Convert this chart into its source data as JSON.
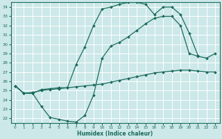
{
  "xlabel": "Humidex (Indice chaleur)",
  "bg_color": "#cce8e8",
  "line_color": "#1a6b5a",
  "grid_color": "#ffffff",
  "xlim": [
    -0.5,
    23.5
  ],
  "ylim": [
    21.5,
    34.5
  ],
  "xticks": [
    0,
    1,
    2,
    3,
    4,
    5,
    6,
    7,
    8,
    9,
    10,
    11,
    12,
    13,
    14,
    15,
    16,
    17,
    18,
    19,
    20,
    21,
    22,
    23
  ],
  "yticks": [
    22,
    23,
    24,
    25,
    26,
    27,
    28,
    29,
    30,
    31,
    32,
    33,
    34
  ],
  "line1_x": [
    0,
    1,
    2,
    3,
    4,
    5,
    6,
    7,
    8,
    9,
    10,
    11,
    12,
    13,
    14,
    15,
    16,
    17,
    18,
    19,
    20,
    21
  ],
  "line1_y": [
    25.5,
    24.7,
    24.7,
    25.1,
    25.2,
    25.3,
    25.3,
    27.8,
    29.7,
    32.0,
    33.8,
    34.0,
    34.3,
    34.5,
    34.5,
    34.3,
    33.2,
    34.0,
    34.0,
    33.2,
    31.2,
    28.8
  ],
  "line2_x": [
    0,
    1,
    2,
    3,
    4,
    5,
    6,
    7,
    8,
    9,
    10,
    11,
    12,
    13,
    14,
    15,
    16,
    17,
    18,
    19,
    20,
    21,
    22,
    23
  ],
  "line2_y": [
    25.5,
    24.7,
    24.7,
    23.3,
    22.1,
    21.9,
    21.7,
    21.6,
    22.3,
    24.5,
    28.5,
    29.8,
    30.2,
    30.8,
    31.5,
    32.2,
    32.8,
    33.0,
    33.0,
    32.0,
    29.0,
    28.7,
    28.5,
    29.0
  ],
  "line3_x": [
    0,
    1,
    2,
    3,
    4,
    5,
    6,
    7,
    8,
    9,
    10,
    11,
    12,
    13,
    14,
    15,
    16,
    17,
    18,
    19,
    20,
    21,
    22,
    23
  ],
  "line3_y": [
    25.5,
    24.7,
    24.8,
    25.0,
    25.1,
    25.2,
    25.3,
    25.4,
    25.5,
    25.6,
    25.7,
    25.9,
    26.1,
    26.3,
    26.5,
    26.7,
    26.9,
    27.0,
    27.1,
    27.2,
    27.2,
    27.1,
    27.0,
    27.0
  ],
  "marker": "D",
  "markersize": 2.0,
  "linewidth": 0.9
}
